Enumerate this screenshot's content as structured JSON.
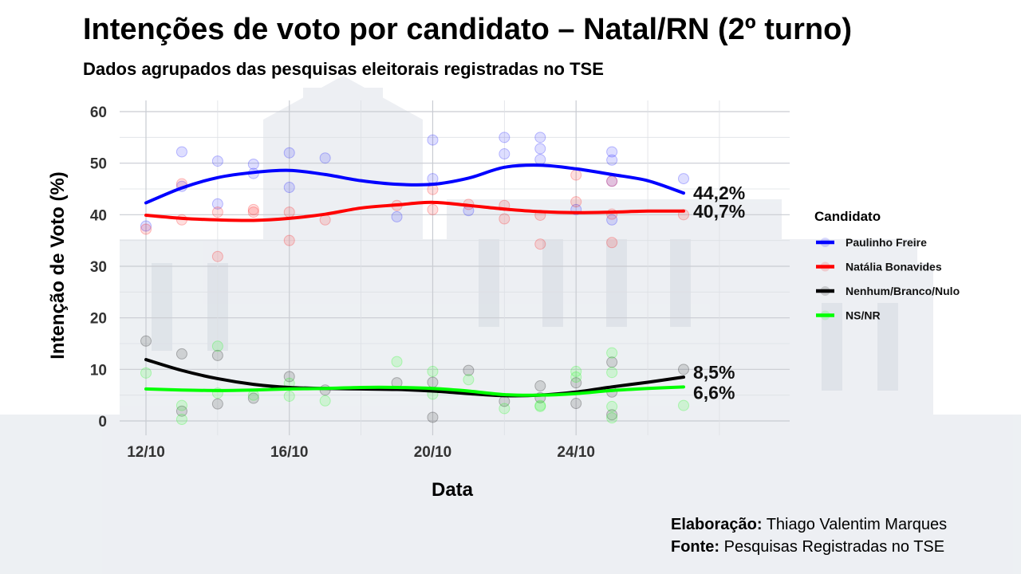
{
  "header": {
    "title": "Intenções de voto por candidato – Natal/RN (2º turno)",
    "subtitle": "Dados agrupados das pesquisas eleitorais registradas no TSE"
  },
  "credits": {
    "author_label": "Elaboração:",
    "author": "Thiago Valentim Marques",
    "source_label": "Fonte:",
    "source": "Pesquisas Registradas no TSE"
  },
  "colors": {
    "paulinho": "#0000ff",
    "natalia": "#ff0000",
    "nulo": "#000000",
    "nsnr": "#00ff00"
  },
  "chart_data": {
    "type": "line",
    "xlabel": "Data",
    "ylabel": "Intenção de Voto (%)",
    "ylim": [
      0,
      60
    ],
    "yticks": [
      0,
      10,
      20,
      30,
      40,
      50,
      60
    ],
    "x_domain": [
      "2024-10-12",
      "2024-10-28"
    ],
    "xticks": [
      {
        "date": "2024-10-12",
        "label": "12/10"
      },
      {
        "date": "2024-10-16",
        "label": "16/10"
      },
      {
        "date": "2024-10-20",
        "label": "20/10"
      },
      {
        "date": "2024-10-24",
        "label": "24/10"
      }
    ],
    "grid": true,
    "legend_title": "Candidato",
    "legend_position": "right",
    "series": [
      {
        "name": "Paulinho Freire",
        "color_key": "paulinho",
        "end_label": "44,2%",
        "smooth": [
          [
            "2024-10-12",
            42.3
          ],
          [
            "2024-10-13",
            45.2
          ],
          [
            "2024-10-14",
            47.2
          ],
          [
            "2024-10-15",
            48.2
          ],
          [
            "2024-10-16",
            48.6
          ],
          [
            "2024-10-17",
            47.8
          ],
          [
            "2024-10-18",
            46.6
          ],
          [
            "2024-10-19",
            45.9
          ],
          [
            "2024-10-20",
            45.9
          ],
          [
            "2024-10-21",
            47.1
          ],
          [
            "2024-10-22",
            49.2
          ],
          [
            "2024-10-23",
            49.6
          ],
          [
            "2024-10-24",
            48.9
          ],
          [
            "2024-10-25",
            47.8
          ],
          [
            "2024-10-26",
            46.6
          ],
          [
            "2024-10-27",
            44.2
          ]
        ],
        "points": [
          [
            "2024-10-12",
            37.8
          ],
          [
            "2024-10-13",
            52.2
          ],
          [
            "2024-10-13",
            45.5
          ],
          [
            "2024-10-14",
            50.4
          ],
          [
            "2024-10-14",
            42.1
          ],
          [
            "2024-10-15",
            49.8
          ],
          [
            "2024-10-15",
            48.0
          ],
          [
            "2024-10-16",
            52.0
          ],
          [
            "2024-10-16",
            45.3
          ],
          [
            "2024-10-17",
            51.0
          ],
          [
            "2024-10-19",
            39.6
          ],
          [
            "2024-10-20",
            54.5
          ],
          [
            "2024-10-20",
            47.0
          ],
          [
            "2024-10-21",
            40.8
          ],
          [
            "2024-10-22",
            55.0
          ],
          [
            "2024-10-22",
            51.8
          ],
          [
            "2024-10-23",
            55.0
          ],
          [
            "2024-10-23",
            52.8
          ],
          [
            "2024-10-23",
            50.7
          ],
          [
            "2024-10-24",
            41.0
          ],
          [
            "2024-10-25",
            52.2
          ],
          [
            "2024-10-25",
            50.6
          ],
          [
            "2024-10-25",
            46.5
          ],
          [
            "2024-10-25",
            39.0
          ],
          [
            "2024-10-27",
            47.0
          ]
        ]
      },
      {
        "name": "Natália Bonavides",
        "color_key": "natalia",
        "end_label": "40,7%",
        "smooth": [
          [
            "2024-10-12",
            39.9
          ],
          [
            "2024-10-13",
            39.3
          ],
          [
            "2024-10-14",
            39.0
          ],
          [
            "2024-10-15",
            38.9
          ],
          [
            "2024-10-16",
            39.3
          ],
          [
            "2024-10-17",
            40.1
          ],
          [
            "2024-10-18",
            41.3
          ],
          [
            "2024-10-19",
            41.9
          ],
          [
            "2024-10-20",
            42.4
          ],
          [
            "2024-10-21",
            41.8
          ],
          [
            "2024-10-22",
            41.1
          ],
          [
            "2024-10-23",
            40.6
          ],
          [
            "2024-10-24",
            40.4
          ],
          [
            "2024-10-25",
            40.5
          ],
          [
            "2024-10-26",
            40.7
          ],
          [
            "2024-10-27",
            40.7
          ]
        ],
        "points": [
          [
            "2024-10-12",
            37.2
          ],
          [
            "2024-10-13",
            46.0
          ],
          [
            "2024-10-13",
            39.0
          ],
          [
            "2024-10-14",
            40.5
          ],
          [
            "2024-10-14",
            31.9
          ],
          [
            "2024-10-15",
            41.0
          ],
          [
            "2024-10-15",
            40.5
          ],
          [
            "2024-10-16",
            40.5
          ],
          [
            "2024-10-16",
            35.0
          ],
          [
            "2024-10-17",
            39.0
          ],
          [
            "2024-10-19",
            41.8
          ],
          [
            "2024-10-20",
            44.9
          ],
          [
            "2024-10-20",
            41.0
          ],
          [
            "2024-10-21",
            42.0
          ],
          [
            "2024-10-22",
            41.8
          ],
          [
            "2024-10-22",
            39.2
          ],
          [
            "2024-10-23",
            39.9
          ],
          [
            "2024-10-23",
            34.3
          ],
          [
            "2024-10-24",
            47.7
          ],
          [
            "2024-10-24",
            42.5
          ],
          [
            "2024-10-25",
            46.5
          ],
          [
            "2024-10-25",
            40.1
          ],
          [
            "2024-10-25",
            34.6
          ],
          [
            "2024-10-27",
            40.0
          ]
        ]
      },
      {
        "name": "Nenhum/Branco/Nulo",
        "color_key": "nulo",
        "end_label": "8,5%",
        "smooth": [
          [
            "2024-10-12",
            11.9
          ],
          [
            "2024-10-13",
            9.8
          ],
          [
            "2024-10-14",
            8.2
          ],
          [
            "2024-10-15",
            7.1
          ],
          [
            "2024-10-16",
            6.5
          ],
          [
            "2024-10-17",
            6.3
          ],
          [
            "2024-10-18",
            6.2
          ],
          [
            "2024-10-19",
            6.1
          ],
          [
            "2024-10-20",
            5.8
          ],
          [
            "2024-10-21",
            5.3
          ],
          [
            "2024-10-22",
            4.9
          ],
          [
            "2024-10-23",
            5.0
          ],
          [
            "2024-10-24",
            5.6
          ],
          [
            "2024-10-25",
            6.6
          ],
          [
            "2024-10-26",
            7.5
          ],
          [
            "2024-10-27",
            8.5
          ]
        ],
        "points": [
          [
            "2024-10-12",
            15.5
          ],
          [
            "2024-10-13",
            13.0
          ],
          [
            "2024-10-13",
            1.9
          ],
          [
            "2024-10-14",
            12.7
          ],
          [
            "2024-10-14",
            3.3
          ],
          [
            "2024-10-15",
            4.4
          ],
          [
            "2024-10-16",
            8.6
          ],
          [
            "2024-10-17",
            6.0
          ],
          [
            "2024-10-19",
            7.4
          ],
          [
            "2024-10-20",
            7.5
          ],
          [
            "2024-10-20",
            0.7
          ],
          [
            "2024-10-21",
            9.8
          ],
          [
            "2024-10-22",
            3.8
          ],
          [
            "2024-10-23",
            6.8
          ],
          [
            "2024-10-23",
            4.5
          ],
          [
            "2024-10-24",
            7.4
          ],
          [
            "2024-10-24",
            3.4
          ],
          [
            "2024-10-25",
            11.4
          ],
          [
            "2024-10-25",
            5.6
          ],
          [
            "2024-10-25",
            1.2
          ],
          [
            "2024-10-27",
            10.0
          ]
        ]
      },
      {
        "name": "NS/NR",
        "color_key": "nsnr",
        "end_label": "6,6%",
        "smooth": [
          [
            "2024-10-12",
            6.2
          ],
          [
            "2024-10-13",
            6.0
          ],
          [
            "2024-10-14",
            5.9
          ],
          [
            "2024-10-15",
            6.0
          ],
          [
            "2024-10-16",
            6.2
          ],
          [
            "2024-10-17",
            6.3
          ],
          [
            "2024-10-18",
            6.5
          ],
          [
            "2024-10-19",
            6.5
          ],
          [
            "2024-10-20",
            6.3
          ],
          [
            "2024-10-21",
            5.8
          ],
          [
            "2024-10-22",
            5.1
          ],
          [
            "2024-10-23",
            5.0
          ],
          [
            "2024-10-24",
            5.3
          ],
          [
            "2024-10-25",
            5.9
          ],
          [
            "2024-10-26",
            6.3
          ],
          [
            "2024-10-27",
            6.6
          ]
        ],
        "points": [
          [
            "2024-10-12",
            9.3
          ],
          [
            "2024-10-13",
            3.0
          ],
          [
            "2024-10-13",
            0.3
          ],
          [
            "2024-10-14",
            14.5
          ],
          [
            "2024-10-14",
            5.4
          ],
          [
            "2024-10-15",
            5.0
          ],
          [
            "2024-10-16",
            7.3
          ],
          [
            "2024-10-16",
            4.8
          ],
          [
            "2024-10-17",
            3.9
          ],
          [
            "2024-10-19",
            11.5
          ],
          [
            "2024-10-20",
            9.6
          ],
          [
            "2024-10-20",
            5.2
          ],
          [
            "2024-10-21",
            8.0
          ],
          [
            "2024-10-22",
            2.4
          ],
          [
            "2024-10-23",
            3.0
          ],
          [
            "2024-10-23",
            2.8
          ],
          [
            "2024-10-24",
            9.6
          ],
          [
            "2024-10-24",
            8.5
          ],
          [
            "2024-10-25",
            13.2
          ],
          [
            "2024-10-25",
            9.4
          ],
          [
            "2024-10-25",
            2.8
          ],
          [
            "2024-10-25",
            0.6
          ],
          [
            "2024-10-27",
            3.0
          ]
        ]
      }
    ]
  }
}
